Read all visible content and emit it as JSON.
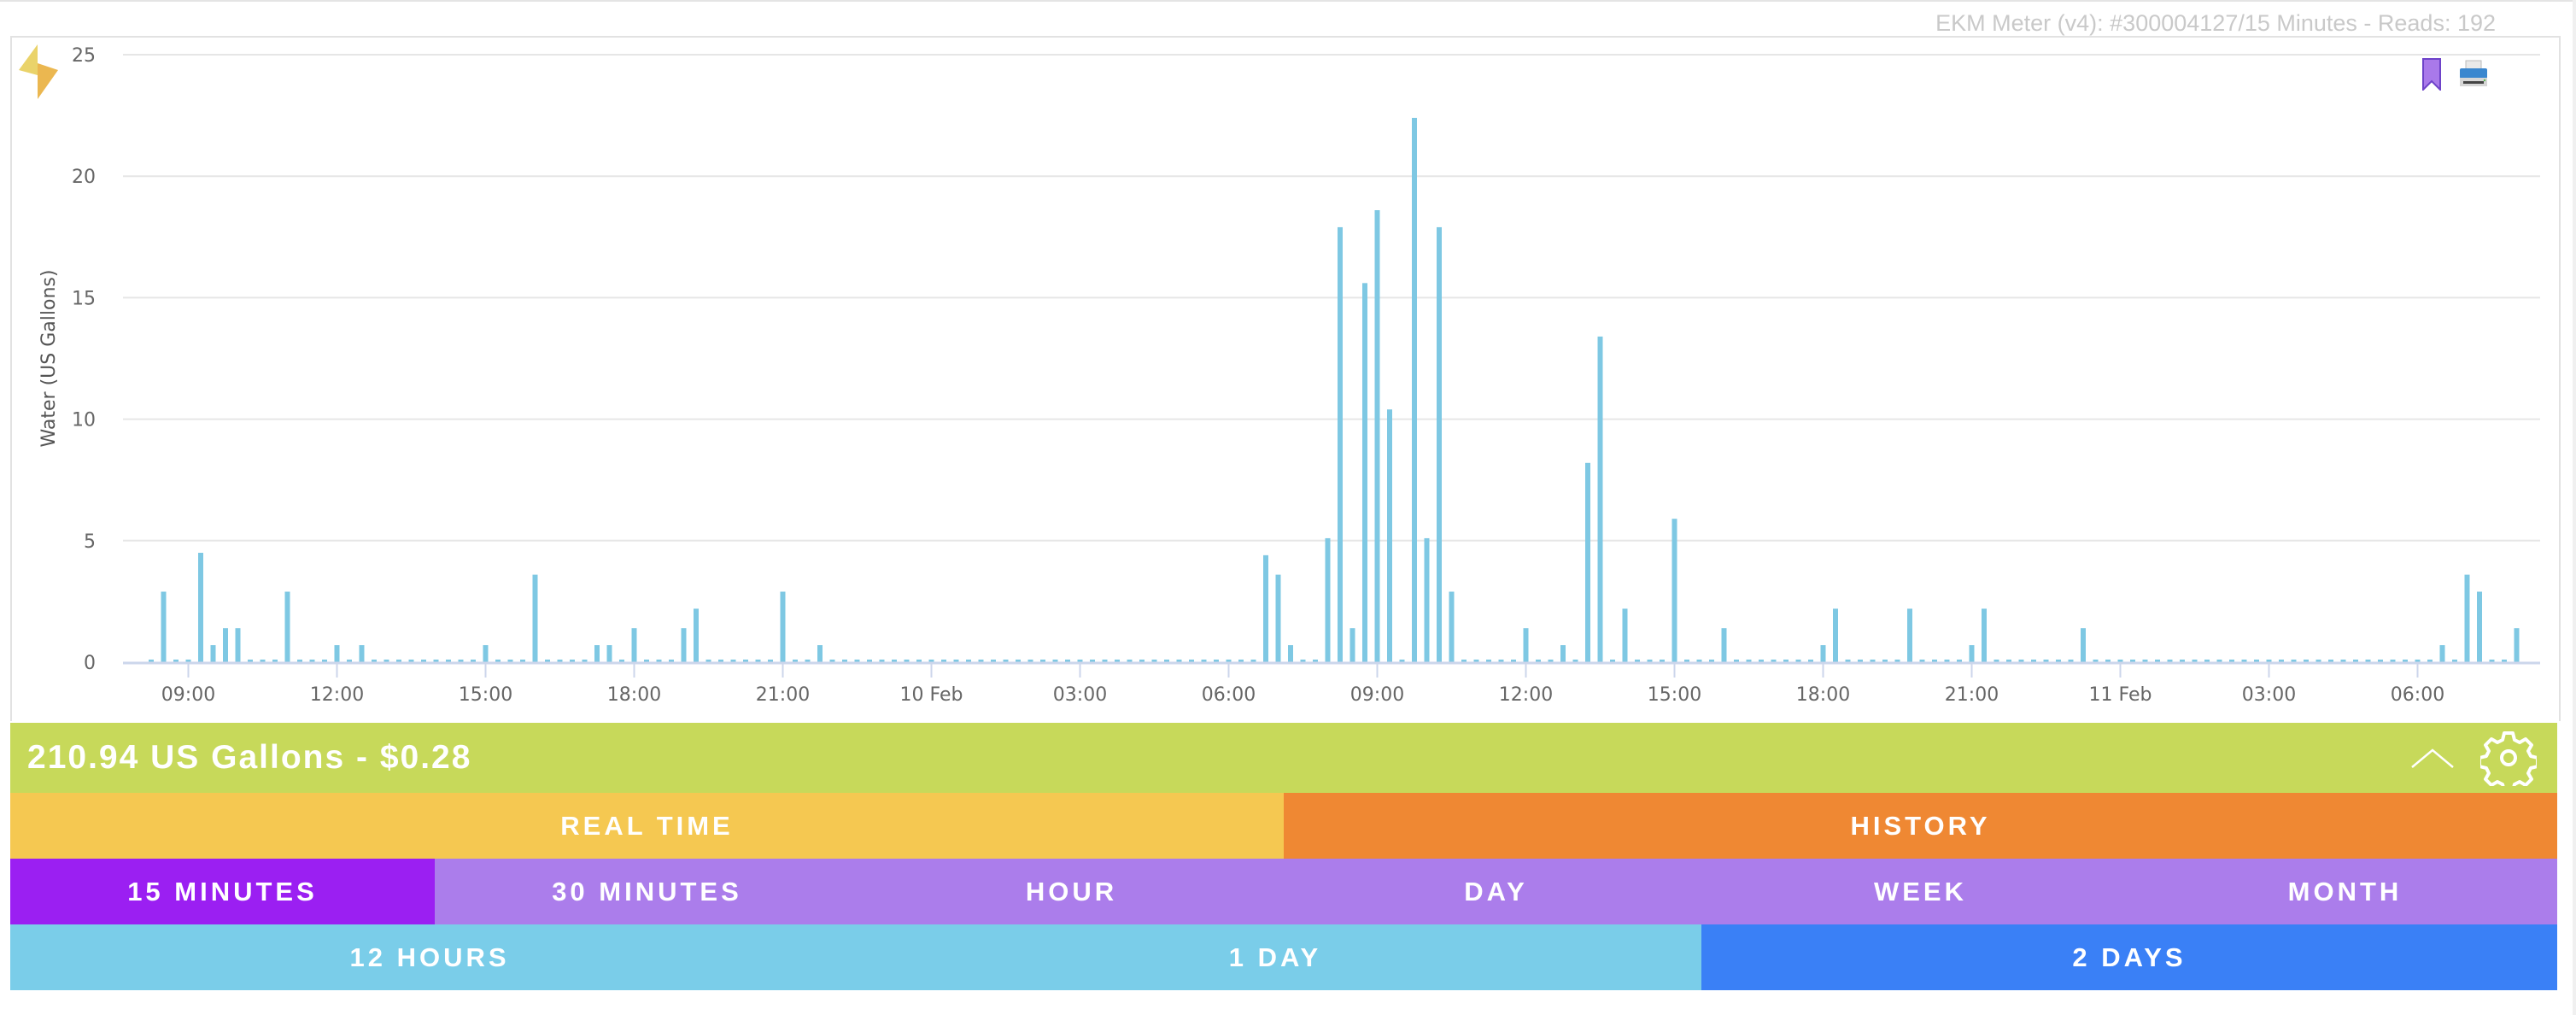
{
  "header": {
    "meter_title": "EKM Meter (v4): #300004127/15 Minutes - Reads: 192",
    "icons": [
      "lightning-icon",
      "bookmark-icon",
      "printer-icon"
    ]
  },
  "summary": {
    "text": "210.94 US Gallons - $0.28",
    "icons": [
      "chevron-up-icon",
      "gear-icon"
    ]
  },
  "mode_tabs": [
    {
      "label": "REAL TIME",
      "color": "#f5c851",
      "active": false
    },
    {
      "label": "HISTORY",
      "color": "#ef8833",
      "active": true
    }
  ],
  "interval_tabs": [
    {
      "label": "15 MINUTES",
      "color": "#9b1ff2",
      "active": true
    },
    {
      "label": "30 MINUTES",
      "color": "#ab7deb",
      "active": false
    },
    {
      "label": "HOUR",
      "color": "#ab7deb",
      "active": false
    },
    {
      "label": "DAY",
      "color": "#ab7deb",
      "active": false
    },
    {
      "label": "WEEK",
      "color": "#ab7deb",
      "active": false
    },
    {
      "label": "MONTH",
      "color": "#ab7deb",
      "active": false
    }
  ],
  "range_tabs": [
    {
      "label": "12 HOURS",
      "color": "#7acde9",
      "active": false
    },
    {
      "label": "1 DAY",
      "color": "#7acde9",
      "active": false
    },
    {
      "label": "2 DAYS",
      "color": "#3a80f6",
      "active": true
    }
  ],
  "colors": {
    "bar": "#7ec8e3",
    "grid": "#e6e6e6",
    "axis": "#ccd6eb",
    "tick_text": "#666666",
    "summary_bg": "#c7d95a"
  },
  "chart_data": {
    "type": "bar",
    "title": "",
    "xlabel": "",
    "ylabel": "Water (US Gallons)",
    "ylim": [
      0,
      25
    ],
    "yticks": [
      0,
      5,
      10,
      15,
      20,
      25
    ],
    "grid": true,
    "legend": null,
    "interval_minutes": 15,
    "start": "09 Feb 08:15",
    "end": "11 Feb 08:00",
    "xtick_labels": [
      {
        "label": "09:00",
        "index": 3
      },
      {
        "label": "12:00",
        "index": 15
      },
      {
        "label": "15:00",
        "index": 27
      },
      {
        "label": "18:00",
        "index": 39
      },
      {
        "label": "21:00",
        "index": 51
      },
      {
        "label": "10 Feb",
        "index": 63
      },
      {
        "label": "03:00",
        "index": 75
      },
      {
        "label": "06:00",
        "index": 87
      },
      {
        "label": "09:00",
        "index": 99
      },
      {
        "label": "12:00",
        "index": 111
      },
      {
        "label": "15:00",
        "index": 123
      },
      {
        "label": "18:00",
        "index": 135
      },
      {
        "label": "21:00",
        "index": 147
      },
      {
        "label": "11 Feb",
        "index": 159
      },
      {
        "label": "03:00",
        "index": 171
      },
      {
        "label": "06:00",
        "index": 183
      }
    ],
    "n_points": 192,
    "baseline_value": 0.1,
    "nonzero_points": [
      {
        "index": 1,
        "time": "08:30",
        "value": 2.9
      },
      {
        "index": 4,
        "time": "09:15",
        "value": 4.5
      },
      {
        "index": 5,
        "time": "09:30",
        "value": 0.7
      },
      {
        "index": 6,
        "time": "09:45",
        "value": 1.4
      },
      {
        "index": 7,
        "time": "10:00",
        "value": 1.4
      },
      {
        "index": 11,
        "time": "11:00",
        "value": 2.9
      },
      {
        "index": 15,
        "time": "12:00",
        "value": 0.7
      },
      {
        "index": 17,
        "time": "12:30",
        "value": 0.7
      },
      {
        "index": 27,
        "time": "15:00",
        "value": 0.7
      },
      {
        "index": 31,
        "time": "16:00",
        "value": 3.6
      },
      {
        "index": 36,
        "time": "17:15",
        "value": 0.7
      },
      {
        "index": 37,
        "time": "17:30",
        "value": 0.7
      },
      {
        "index": 39,
        "time": "18:00",
        "value": 1.4
      },
      {
        "index": 43,
        "time": "19:00",
        "value": 1.4
      },
      {
        "index": 44,
        "time": "19:15",
        "value": 2.2
      },
      {
        "index": 51,
        "time": "21:00",
        "value": 2.9
      },
      {
        "index": 54,
        "time": "21:45",
        "value": 0.7
      },
      {
        "index": 90,
        "time": "10 Feb 06:45",
        "value": 4.4
      },
      {
        "index": 91,
        "time": "10 Feb 07:00",
        "value": 3.6
      },
      {
        "index": 92,
        "time": "10 Feb 07:15",
        "value": 0.7
      },
      {
        "index": 95,
        "time": "10 Feb 08:00",
        "value": 5.1
      },
      {
        "index": 96,
        "time": "10 Feb 08:15",
        "value": 17.9
      },
      {
        "index": 97,
        "time": "10 Feb 08:30",
        "value": 1.4
      },
      {
        "index": 98,
        "time": "10 Feb 08:45",
        "value": 15.6
      },
      {
        "index": 99,
        "time": "10 Feb 09:00",
        "value": 18.6
      },
      {
        "index": 100,
        "time": "10 Feb 09:15",
        "value": 10.4
      },
      {
        "index": 102,
        "time": "10 Feb 09:45",
        "value": 22.4
      },
      {
        "index": 103,
        "time": "10 Feb 10:00",
        "value": 5.1
      },
      {
        "index": 104,
        "time": "10 Feb 10:15",
        "value": 17.9
      },
      {
        "index": 105,
        "time": "10 Feb 10:30",
        "value": 2.9
      },
      {
        "index": 111,
        "time": "10 Feb 12:00",
        "value": 1.4
      },
      {
        "index": 114,
        "time": "10 Feb 12:45",
        "value": 0.7
      },
      {
        "index": 116,
        "time": "10 Feb 13:15",
        "value": 8.2
      },
      {
        "index": 117,
        "time": "10 Feb 13:30",
        "value": 13.4
      },
      {
        "index": 119,
        "time": "10 Feb 14:00",
        "value": 2.2
      },
      {
        "index": 123,
        "time": "10 Feb 15:00",
        "value": 5.9
      },
      {
        "index": 127,
        "time": "10 Feb 16:00",
        "value": 1.4
      },
      {
        "index": 135,
        "time": "10 Feb 18:00",
        "value": 0.7
      },
      {
        "index": 136,
        "time": "10 Feb 18:15",
        "value": 2.2
      },
      {
        "index": 142,
        "time": "10 Feb 19:45",
        "value": 2.2
      },
      {
        "index": 147,
        "time": "10 Feb 21:00",
        "value": 0.7
      },
      {
        "index": 148,
        "time": "10 Feb 21:15",
        "value": 2.2
      },
      {
        "index": 156,
        "time": "10 Feb 23:15",
        "value": 1.4
      },
      {
        "index": 185,
        "time": "11 Feb 06:30",
        "value": 0.7
      },
      {
        "index": 187,
        "time": "11 Feb 07:00",
        "value": 3.6
      },
      {
        "index": 188,
        "time": "11 Feb 07:15",
        "value": 2.9
      },
      {
        "index": 191,
        "time": "11 Feb 08:00",
        "value": 1.4
      }
    ],
    "total": "210.94 US Gallons",
    "cost": "$0.28"
  }
}
